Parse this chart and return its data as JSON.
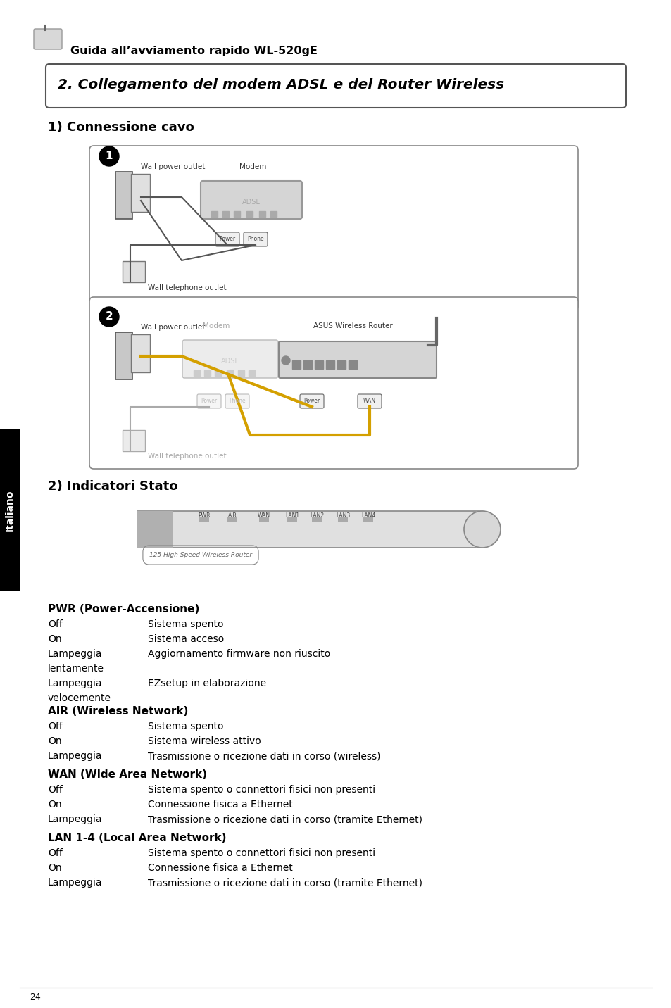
{
  "page_bg": "#ffffff",
  "header_text": "Guida all’avviamento rapido WL-520gE",
  "section_title": "2. Collegamento del modem ADSL e del Router Wireless",
  "subsection1": "1) Connessione cavo",
  "subsection2": "2) Indicatori Stato",
  "sidebar_text": "Italiano",
  "sidebar_bg": "#000000",
  "sidebar_text_color": "#ffffff",
  "page_number": "24",
  "pwr_title": "PWR (Power-Accensione)",
  "pwr_rows": [
    [
      "Off",
      "Sistema spento"
    ],
    [
      "On",
      "Sistema acceso"
    ],
    [
      "Lampeggia\nlentamente",
      "Aggiornamento firmware non riuscito"
    ],
    [
      "Lampeggia\nvelocemente",
      "EZsetup in elaborazione"
    ]
  ],
  "air_title": "AIR (Wireless Network)",
  "air_rows": [
    [
      "Off",
      "Sistema spento"
    ],
    [
      "On",
      "Sistema wireless attivo"
    ],
    [
      "Lampeggia",
      "Trasmissione o ricezione dati in corso (wireless)"
    ]
  ],
  "wan_title": "WAN (Wide Area Network)",
  "wan_rows": [
    [
      "Off",
      "Sistema spento o connettori fisici non presenti"
    ],
    [
      "On",
      "Connessione fisica a Ethernet"
    ],
    [
      "Lampeggia",
      "Trasmissione o ricezione dati in corso (tramite Ethernet)"
    ]
  ],
  "lan_title": "LAN 1-4 (Local Area Network)",
  "lan_rows": [
    [
      "Off",
      "Sistema spento o connettori fisici non presenti"
    ],
    [
      "On",
      "Connessione fisica a Ethernet"
    ],
    [
      "Lampeggia",
      "Trasmissione o ricezione dati in corso (tramite Ethernet)"
    ]
  ],
  "box1_label1": "Wall power outlet",
  "box1_label2": "Modem",
  "box1_label3": "Wall telephone outlet",
  "box1_conn1": "Power",
  "box1_conn2": "Phone",
  "box2_label1": "Wall power outlet",
  "box2_label2": "Modem",
  "box2_label3": "ASUS Wireless Router",
  "box2_label4": "Wall telephone outlet",
  "box2_conn1": "Power",
  "box2_conn2": "Phone",
  "box2_conn3": "Power",
  "box2_conn4": "WAN",
  "router_label": "125 High Speed Wireless Router",
  "router_led_labels": [
    "PWR",
    "AIR",
    "WAN",
    "LAN1",
    "LAN2",
    "LAN3",
    "LAN4"
  ]
}
